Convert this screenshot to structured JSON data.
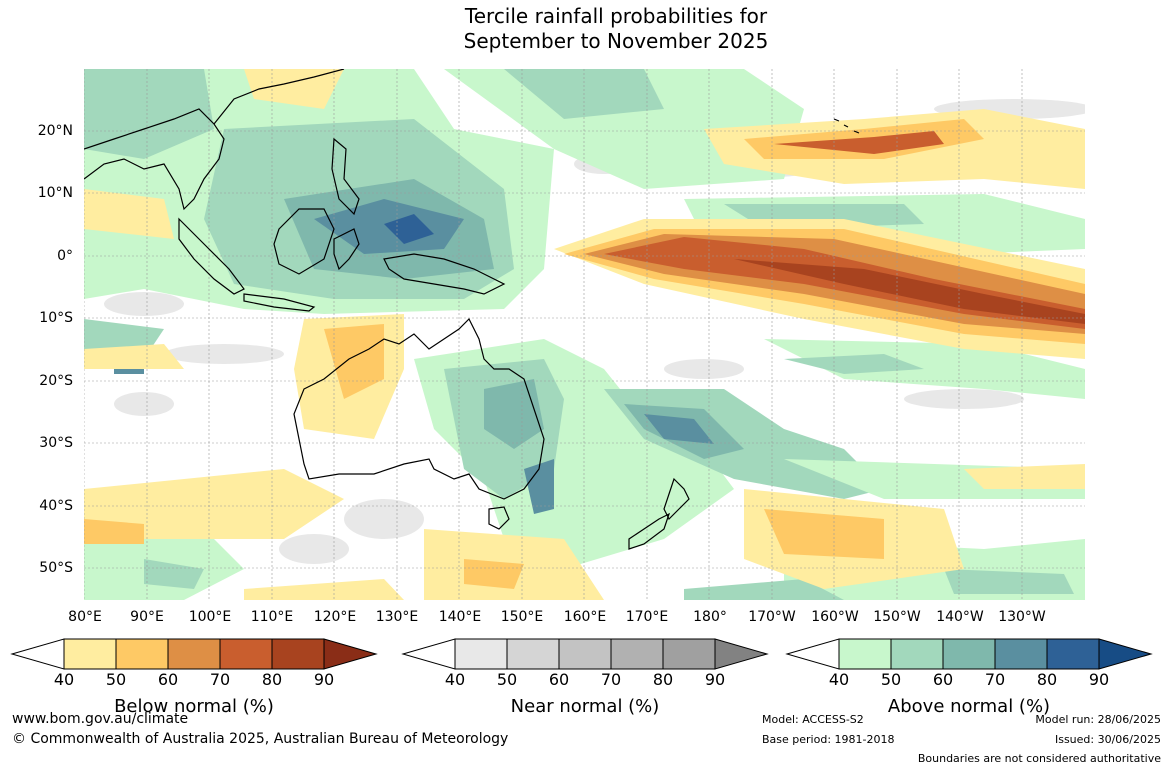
{
  "title": {
    "line1": "Tercile rainfall probabilities for",
    "line2": "September to November 2025"
  },
  "lat_labels": [
    "20°N",
    "10°N",
    "0°",
    "10°S",
    "20°S",
    "30°S",
    "40°S",
    "50°S"
  ],
  "lon_labels": [
    "80°E",
    "90°E",
    "100°E",
    "110°E",
    "120°E",
    "130°E",
    "140°E",
    "150°E",
    "160°E",
    "170°E",
    "180°",
    "170°W",
    "160°W",
    "150°W",
    "140°W",
    "130°W"
  ],
  "colorbars": [
    {
      "label": "Below normal (%)",
      "ticks": [
        "40",
        "50",
        "60",
        "70",
        "80",
        "90"
      ],
      "colors": [
        "#ffeda0",
        "#fec965",
        "#de8f45",
        "#c95e2e",
        "#a8431f",
        "#8a2d17"
      ]
    },
    {
      "label": "Near normal (%)",
      "ticks": [
        "40",
        "50",
        "60",
        "70",
        "80",
        "90"
      ],
      "colors": [
        "#e8e8e8",
        "#d5d5d5",
        "#c3c3c3",
        "#b1b1b1",
        "#a0a0a0",
        "#828282"
      ]
    },
    {
      "label": "Above normal (%)",
      "ticks": [
        "40",
        "50",
        "60",
        "70",
        "80",
        "90"
      ],
      "colors": [
        "#c8f7cc",
        "#a2d8bc",
        "#7fb8ac",
        "#5a8fa0",
        "#2e6196",
        "#174c85"
      ]
    }
  ],
  "footer": {
    "website": "www.bom.gov.au/climate",
    "copyright": "© Commonwealth of Australia 2025, Australian Bureau of Meteorology",
    "model": "Model: ACCESS-S2",
    "base_period": "Base period: 1981-2018",
    "model_run": "Model run: 28/06/2025",
    "issued": "Issued: 30/06/2025",
    "disclaimer": "Boundaries are not considered authoritative"
  }
}
